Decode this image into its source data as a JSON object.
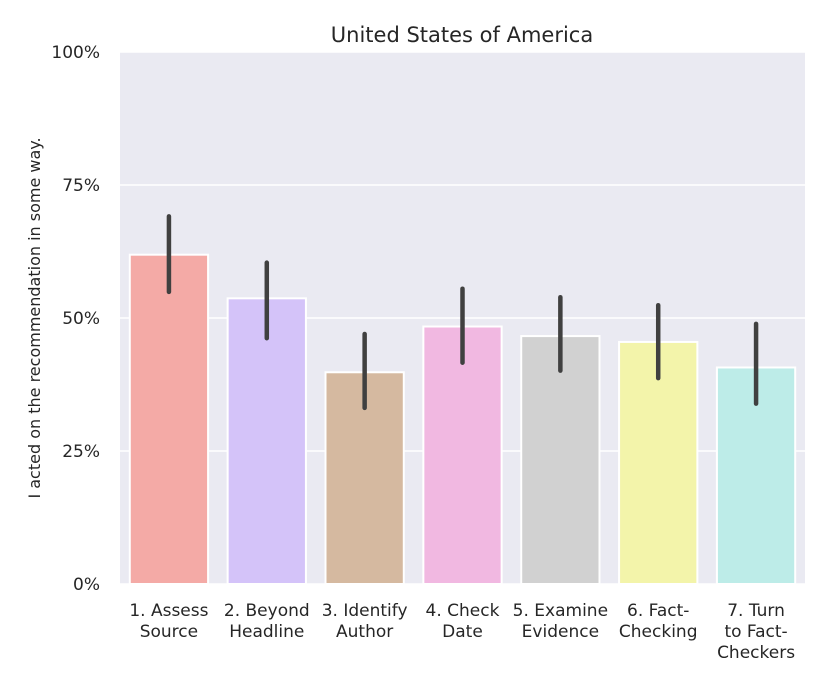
{
  "chart_data": {
    "type": "bar",
    "title": "United States of America",
    "xlabel": "",
    "ylabel": "I acted on the recommendation in some way.",
    "ylim": [
      0,
      100
    ],
    "yticks": [
      0,
      25,
      50,
      75,
      100
    ],
    "ytick_labels": [
      "0%",
      "25%",
      "50%",
      "75%",
      "100%"
    ],
    "grid": true,
    "categories": [
      [
        "1. Assess",
        "Source"
      ],
      [
        "2. Beyond",
        "Headline"
      ],
      [
        "3. Identify",
        "Author"
      ],
      [
        "4. Check",
        "Date"
      ],
      [
        "5. Examine",
        "Evidence"
      ],
      [
        "6. Fact-",
        "Checking"
      ],
      [
        "7. Turn",
        "to Fact-",
        "Checkers"
      ]
    ],
    "values": [
      61.9,
      53.7,
      39.8,
      48.4,
      46.6,
      45.5,
      40.7
    ],
    "error_low": [
      54.9,
      46.2,
      33.1,
      41.6,
      40.1,
      38.7,
      33.9
    ],
    "error_high": [
      69.1,
      60.4,
      47.0,
      55.5,
      53.9,
      52.4,
      48.9
    ],
    "colors": [
      "#f4aaa6",
      "#d4c3f9",
      "#d5b9a0",
      "#f1b8e1",
      "#d1d1d1",
      "#f3f4aa",
      "#bdece8"
    ],
    "background_color": "#eaeaf2",
    "error_color": "#404040"
  }
}
